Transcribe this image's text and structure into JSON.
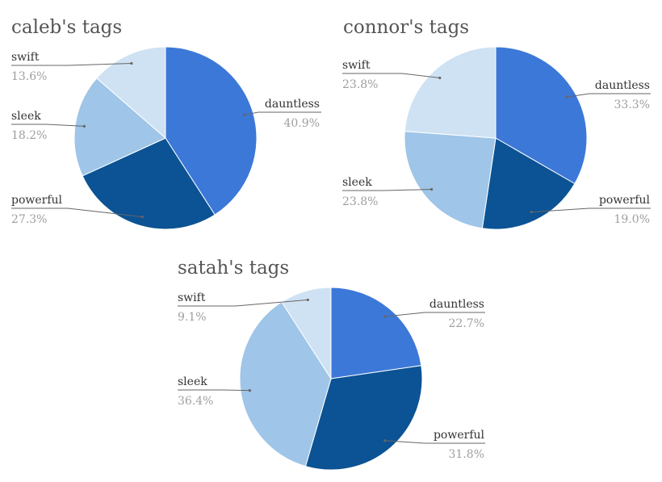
{
  "colors": {
    "dauntless": "#3c78d8",
    "powerful": "#0b5394",
    "sleek": "#9fc5e8",
    "swift": "#cfe2f3",
    "leader": "#666666"
  },
  "chart_data": [
    {
      "type": "pie",
      "title": "caleb's tags",
      "slices": [
        {
          "label": "dauntless",
          "value": 40.9,
          "pct_label": "40.9%"
        },
        {
          "label": "powerful",
          "value": 27.3,
          "pct_label": "27.3%"
        },
        {
          "label": "sleek",
          "value": 18.2,
          "pct_label": "18.2%"
        },
        {
          "label": "swift",
          "value": 13.6,
          "pct_label": "13.6%"
        }
      ]
    },
    {
      "type": "pie",
      "title": "connor's tags",
      "slices": [
        {
          "label": "dauntless",
          "value": 33.3,
          "pct_label": "33.3%"
        },
        {
          "label": "powerful",
          "value": 19.0,
          "pct_label": "19.0%"
        },
        {
          "label": "sleek",
          "value": 23.8,
          "pct_label": "23.8%"
        },
        {
          "label": "swift",
          "value": 23.8,
          "pct_label": "23.8%"
        }
      ]
    },
    {
      "type": "pie",
      "title": "satah's tags",
      "slices": [
        {
          "label": "dauntless",
          "value": 22.7,
          "pct_label": "22.7%"
        },
        {
          "label": "powerful",
          "value": 31.8,
          "pct_label": "31.8%"
        },
        {
          "label": "sleek",
          "value": 36.4,
          "pct_label": "36.4%"
        },
        {
          "label": "swift",
          "value": 9.1,
          "pct_label": "9.1%"
        }
      ]
    }
  ]
}
